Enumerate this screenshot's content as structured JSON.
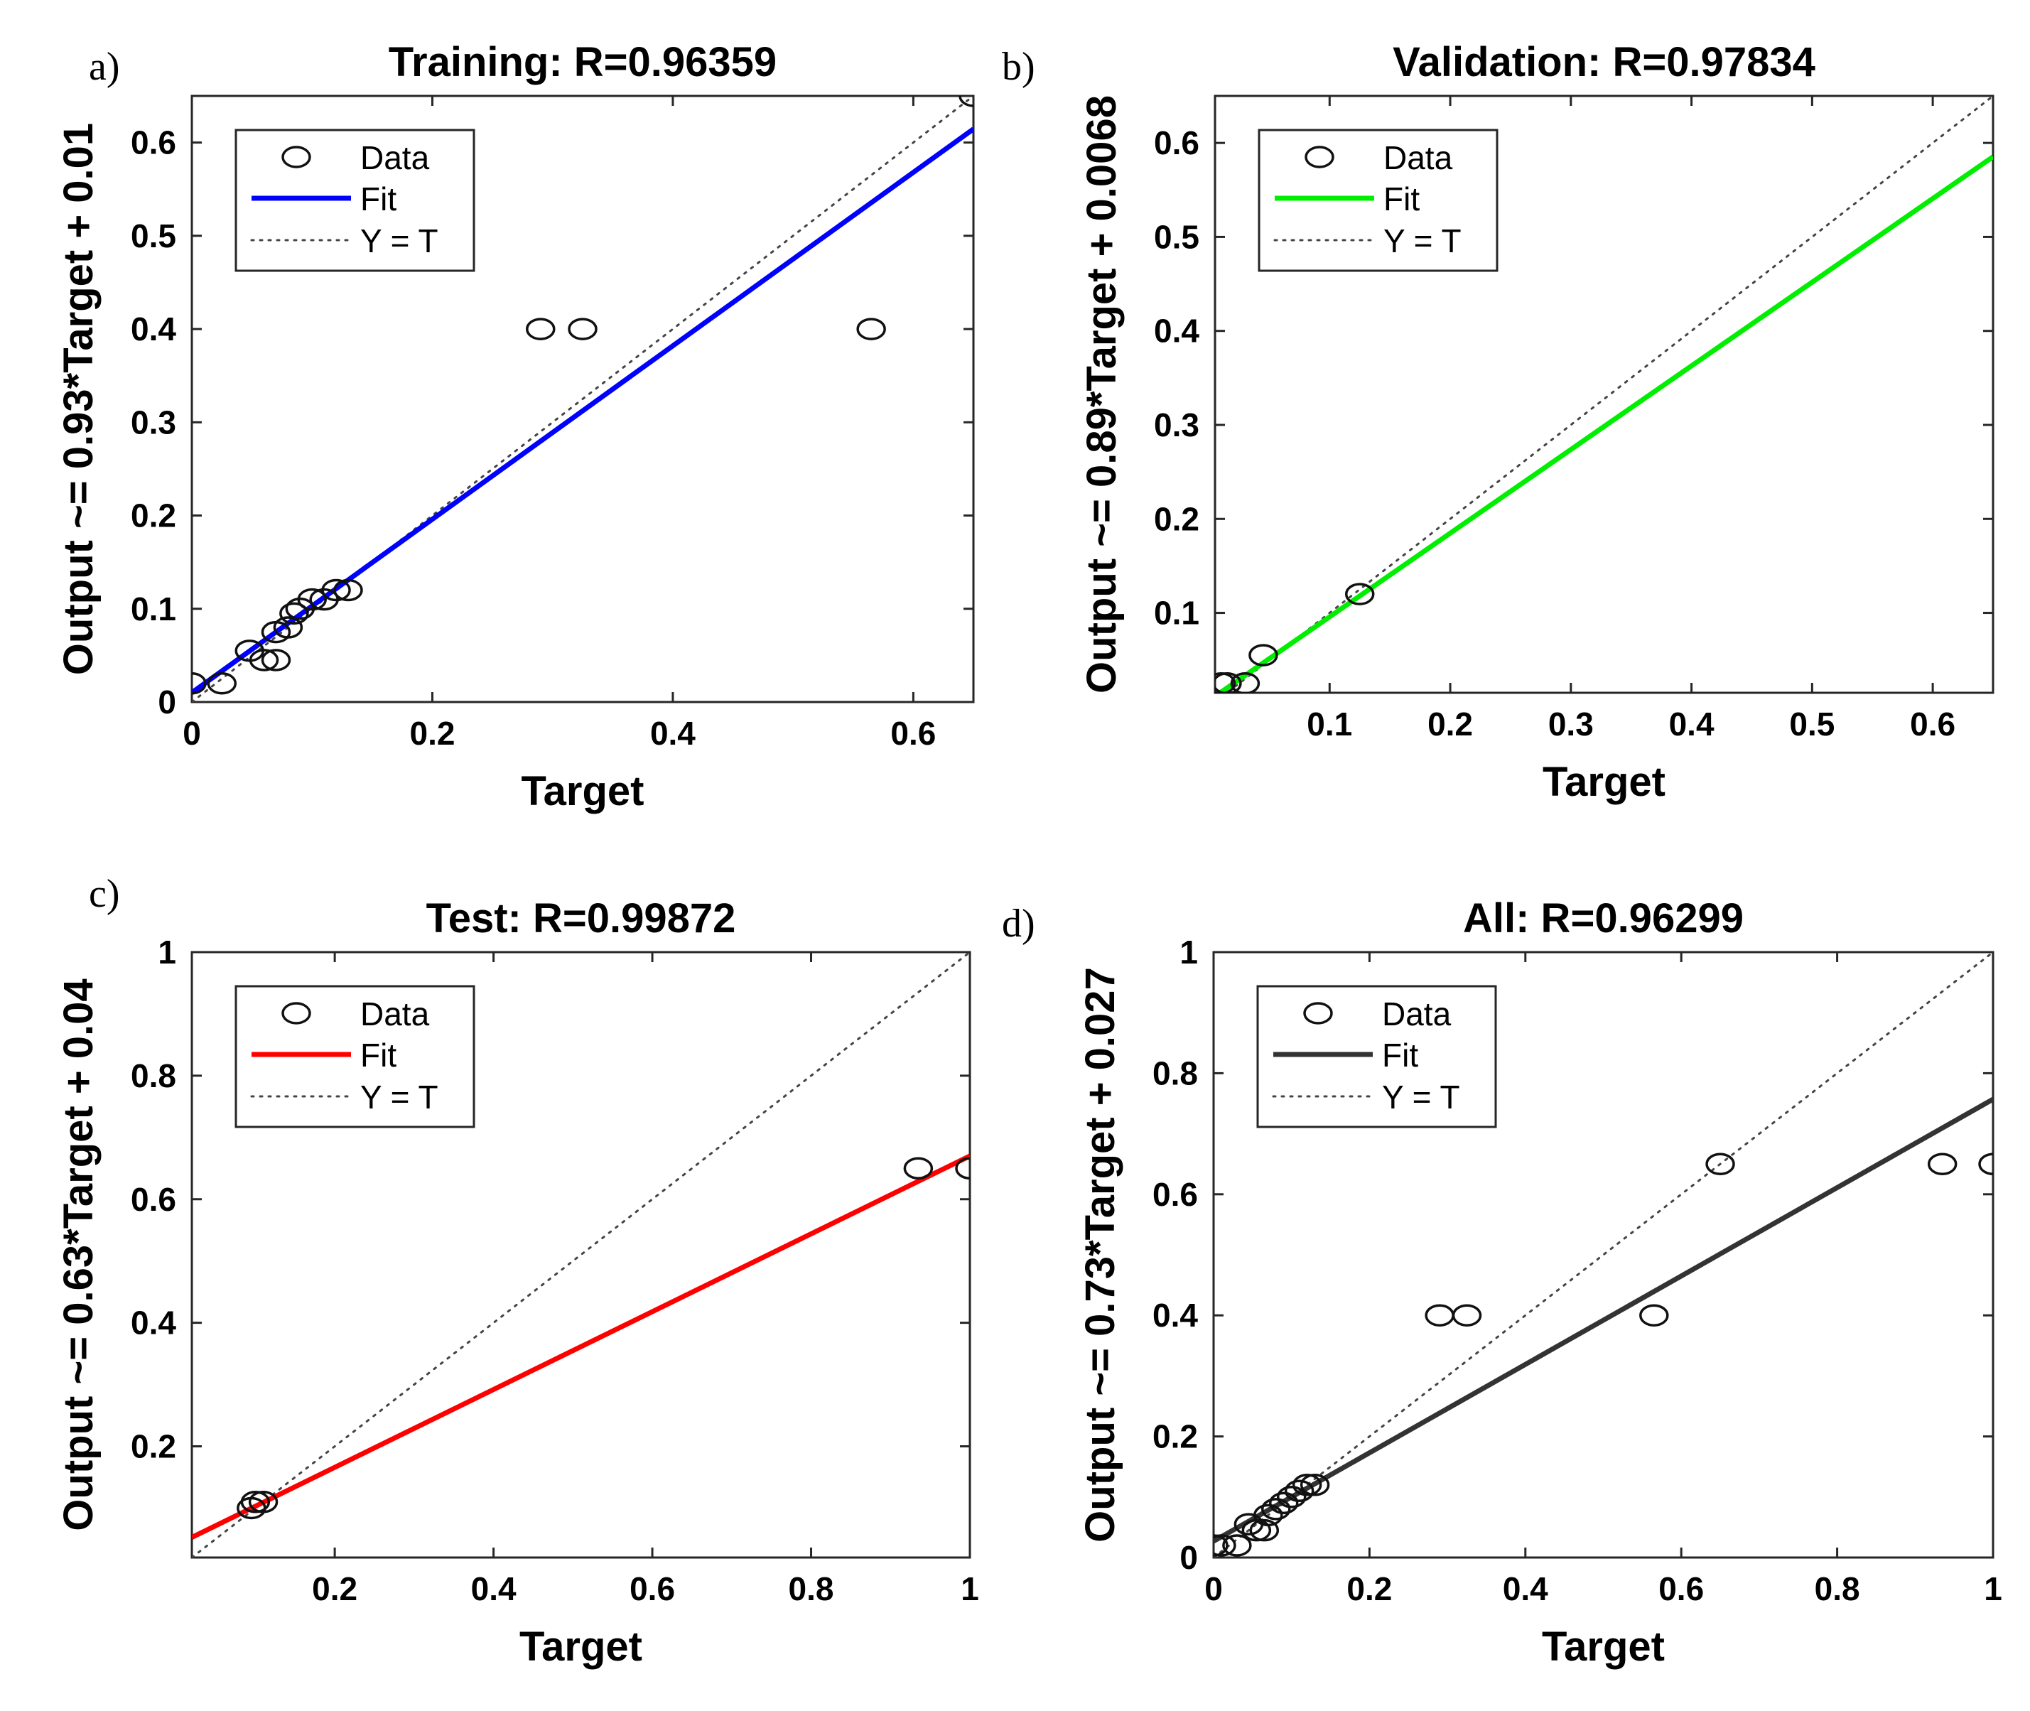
{
  "chart_data": [
    {
      "type": "scatter",
      "panel_label": "a)",
      "title": "Training: R=0.96359",
      "xlabel": "Target",
      "ylabel": "Output ~= 0.93*Target + 0.01",
      "xlim": [
        0,
        0.65
      ],
      "ylim": [
        0,
        0.65
      ],
      "xticks": [
        0,
        0.2,
        0.4,
        0.6
      ],
      "yticks": [
        0,
        0.1,
        0.2,
        0.3,
        0.4,
        0.5,
        0.6
      ],
      "xtick_labels": [
        "0",
        "0.2",
        "0.4",
        "0.6"
      ],
      "ytick_labels": [
        "0",
        "0.1",
        "0.2",
        "0.3",
        "0.4",
        "0.5",
        "0.6"
      ],
      "fit": {
        "slope": 0.93,
        "intercept": 0.01,
        "color": "#0000ff"
      },
      "legend": [
        "Data",
        "Fit",
        "Y = T"
      ],
      "legend_position": "top-left",
      "points": [
        [
          0.0,
          0.02
        ],
        [
          0.025,
          0.02
        ],
        [
          0.048,
          0.055
        ],
        [
          0.06,
          0.045
        ],
        [
          0.07,
          0.045
        ],
        [
          0.07,
          0.075
        ],
        [
          0.08,
          0.08
        ],
        [
          0.085,
          0.095
        ],
        [
          0.09,
          0.1
        ],
        [
          0.1,
          0.11
        ],
        [
          0.11,
          0.11
        ],
        [
          0.12,
          0.12
        ],
        [
          0.13,
          0.12
        ],
        [
          0.29,
          0.4
        ],
        [
          0.325,
          0.4
        ],
        [
          0.565,
          0.4
        ],
        [
          0.65,
          0.65
        ]
      ]
    },
    {
      "type": "scatter",
      "panel_label": "b)",
      "title": "Validation: R=0.97834",
      "xlabel": "Target",
      "ylabel": "Output ~= 0.89*Target + 0.0068",
      "xlim": [
        0.005,
        0.65
      ],
      "ylim": [
        0.015,
        0.65
      ],
      "xticks": [
        0.1,
        0.2,
        0.3,
        0.4,
        0.5,
        0.6
      ],
      "yticks": [
        0.1,
        0.2,
        0.3,
        0.4,
        0.5,
        0.6
      ],
      "xtick_labels": [
        "0.1",
        "0.2",
        "0.3",
        "0.4",
        "0.5",
        "0.6"
      ],
      "ytick_labels": [
        "0.1",
        "0.2",
        "0.3",
        "0.4",
        "0.5",
        "0.6"
      ],
      "fit": {
        "slope": 0.89,
        "intercept": 0.0068,
        "color": "#00ee00"
      },
      "legend": [
        "Data",
        "Fit",
        "Y = T"
      ],
      "legend_position": "top-left",
      "points": [
        [
          0.01,
          0.025
        ],
        [
          0.015,
          0.025
        ],
        [
          0.03,
          0.025
        ],
        [
          0.045,
          0.055
        ],
        [
          0.125,
          0.12
        ]
      ]
    },
    {
      "type": "scatter",
      "panel_label": "c)",
      "title": "Test: R=0.99872",
      "xlabel": "Target",
      "ylabel": "Output ~= 0.63*Target + 0.04",
      "xlim": [
        0.02,
        1.0
      ],
      "ylim": [
        0.02,
        1.0
      ],
      "xticks": [
        0.2,
        0.4,
        0.6,
        0.8,
        1.0
      ],
      "yticks": [
        0.2,
        0.4,
        0.6,
        0.8,
        1.0
      ],
      "xtick_labels": [
        "0.2",
        "0.4",
        "0.6",
        "0.8",
        "1"
      ],
      "ytick_labels": [
        "0.2",
        "0.4",
        "0.6",
        "0.8",
        "1"
      ],
      "fit": {
        "slope": 0.63,
        "intercept": 0.04,
        "color": "#ff0000"
      },
      "legend": [
        "Data",
        "Fit",
        "Y = T"
      ],
      "legend_position": "top-left",
      "points": [
        [
          0.095,
          0.1
        ],
        [
          0.1,
          0.11
        ],
        [
          0.11,
          0.11
        ],
        [
          0.935,
          0.65
        ],
        [
          1.0,
          0.65
        ]
      ]
    },
    {
      "type": "scatter",
      "panel_label": "d)",
      "title": "All: R=0.96299",
      "xlabel": "Target",
      "ylabel": "Output ~= 0.73*Target + 0.027",
      "xlim": [
        0,
        1.0
      ],
      "ylim": [
        0,
        1.0
      ],
      "xticks": [
        0,
        0.2,
        0.4,
        0.6,
        0.8,
        1.0
      ],
      "yticks": [
        0,
        0.2,
        0.4,
        0.6,
        0.8,
        1.0
      ],
      "xtick_labels": [
        "0",
        "0.2",
        "0.4",
        "0.6",
        "0.8",
        "1"
      ],
      "ytick_labels": [
        "0",
        "0.2",
        "0.4",
        "0.6",
        "0.8",
        "1"
      ],
      "fit": {
        "slope": 0.73,
        "intercept": 0.027,
        "color": "#333333"
      },
      "legend": [
        "Data",
        "Fit",
        "Y = T"
      ],
      "legend_position": "top-left",
      "points": [
        [
          0.0,
          0.02
        ],
        [
          0.01,
          0.02
        ],
        [
          0.03,
          0.02
        ],
        [
          0.045,
          0.055
        ],
        [
          0.055,
          0.045
        ],
        [
          0.065,
          0.045
        ],
        [
          0.07,
          0.07
        ],
        [
          0.08,
          0.08
        ],
        [
          0.09,
          0.09
        ],
        [
          0.1,
          0.1
        ],
        [
          0.11,
          0.11
        ],
        [
          0.12,
          0.12
        ],
        [
          0.13,
          0.12
        ],
        [
          0.29,
          0.4
        ],
        [
          0.325,
          0.4
        ],
        [
          0.565,
          0.4
        ],
        [
          0.65,
          0.65
        ],
        [
          0.935,
          0.65
        ],
        [
          1.0,
          0.65
        ]
      ]
    }
  ]
}
